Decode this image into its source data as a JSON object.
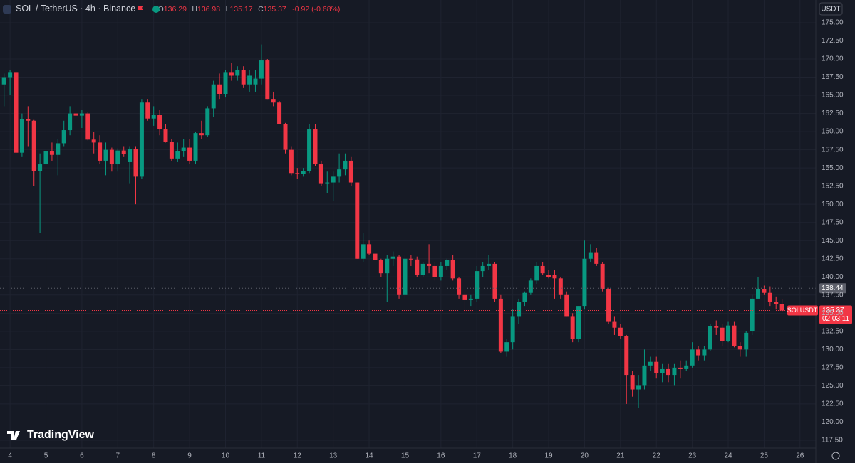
{
  "chart_data": {
    "type": "candlestick",
    "title": "SOL / TetherUS · 4h · Binance",
    "ohlc_labels": [
      "O",
      "H",
      "L",
      "C"
    ],
    "change": "-0.92 (-0.68%)",
    "currency": "USDT",
    "symbol_tag": "SOLUSDT",
    "countdown": "02:03:11",
    "brand": "TradingView",
    "price_line": 138.44,
    "up_color": "#089981",
    "down_color": "#f23645",
    "grid": true,
    "xlim": [
      3.72,
      26.44
    ],
    "ylim": [
      116.42,
      178.13
    ],
    "xticks": [
      4,
      5,
      6,
      7,
      8,
      9,
      10,
      11,
      12,
      13,
      14,
      15,
      16,
      17,
      18,
      19,
      20,
      21,
      22,
      23,
      24,
      25,
      26
    ],
    "yticks": [
      {
        "value": 117.5,
        "label": "117.50"
      },
      {
        "value": 120,
        "label": "120.00"
      },
      {
        "value": 122.5,
        "label": "122.50"
      },
      {
        "value": 125,
        "label": "125.00"
      },
      {
        "value": 127.5,
        "label": "127.50"
      },
      {
        "value": 130,
        "label": "130.00"
      },
      {
        "value": 132.5,
        "label": "132.50"
      },
      {
        "value": 135,
        "label": "135.00"
      },
      {
        "value": 137.5,
        "label": "137.50"
      },
      {
        "value": 140,
        "label": "140.00"
      },
      {
        "value": 142.5,
        "label": "142.50"
      },
      {
        "value": 145,
        "label": "145.00"
      },
      {
        "value": 147.5,
        "label": "147.50"
      },
      {
        "value": 150,
        "label": "150.00"
      },
      {
        "value": 152.5,
        "label": "152.50"
      },
      {
        "value": 155,
        "label": "155.00"
      },
      {
        "value": 157.5,
        "label": "157.50"
      },
      {
        "value": 160,
        "label": "160.00"
      },
      {
        "value": 162.5,
        "label": "162.50"
      },
      {
        "value": 165,
        "label": "165.00"
      },
      {
        "value": 167.5,
        "label": "167.50"
      },
      {
        "value": 170,
        "label": "170.00"
      },
      {
        "value": 172.5,
        "label": "172.50"
      },
      {
        "value": 175,
        "label": "175.00"
      }
    ],
    "x": [
      3.833,
      4,
      4.167,
      4.333,
      4.5,
      4.667,
      4.833,
      5,
      5.167,
      5.333,
      5.5,
      5.667,
      5.833,
      6,
      6.167,
      6.333,
      6.5,
      6.667,
      6.833,
      7,
      7.167,
      7.333,
      7.5,
      7.667,
      7.833,
      8,
      8.167,
      8.333,
      8.5,
      8.667,
      8.833,
      9,
      9.167,
      9.333,
      9.5,
      9.667,
      9.833,
      10,
      10.167,
      10.333,
      10.5,
      10.667,
      10.833,
      11,
      11.167,
      11.333,
      11.5,
      11.667,
      11.833,
      12,
      12.167,
      12.333,
      12.5,
      12.667,
      12.833,
      13,
      13.167,
      13.333,
      13.5,
      13.667,
      13.833,
      14,
      14.167,
      14.333,
      14.5,
      14.667,
      14.833,
      15,
      15.167,
      15.333,
      15.5,
      15.667,
      15.833,
      16,
      16.167,
      16.333,
      16.5,
      16.667,
      16.833,
      17,
      17.167,
      17.333,
      17.5,
      17.667,
      17.833,
      18,
      18.167,
      18.333,
      18.5,
      18.667,
      18.833,
      19,
      19.167,
      19.333,
      19.5,
      19.667,
      19.833,
      20,
      20.167,
      20.333,
      20.5,
      20.667,
      20.833,
      21,
      21.167,
      21.333,
      21.5,
      21.667,
      21.833,
      22,
      22.167,
      22.333,
      22.5,
      22.667,
      22.833,
      23,
      23.167,
      23.333,
      23.5,
      23.667,
      23.833,
      24,
      24.167,
      24.333,
      24.5,
      24.667,
      24.833,
      25,
      25.167,
      25.333,
      25.5
    ],
    "open": [
      166.5,
      167.5,
      168.2,
      157.1,
      161.7,
      161.5,
      154.6,
      155.5,
      157.3,
      156.8,
      158.4,
      160.2,
      162.5,
      162.2,
      162.5,
      158.9,
      158.5,
      156,
      157.5,
      155.5,
      157.4,
      155.8,
      157.6,
      153.8,
      164,
      161.8,
      162.3,
      160.3,
      158.6,
      156.3,
      157.3,
      157.8,
      156,
      159.8,
      159.5,
      163.2,
      166.5,
      165.2,
      168.2,
      167.7,
      168.5,
      166.5,
      166.5,
      167.3,
      169.8,
      164.5,
      164,
      161,
      157.5,
      154.3,
      154.2,
      154.6,
      160.3,
      155.5,
      152.8,
      153,
      153.8,
      154.8,
      156,
      153,
      142.5,
      144.5,
      143.2,
      142.3,
      140.5,
      142.5,
      142.8,
      137.5,
      142.5,
      142.4,
      140.3,
      141.8,
      141.5,
      140,
      141.5,
      142.3,
      139.8,
      137.5,
      136.8,
      137,
      140.8,
      141.5,
      141.8,
      137,
      129.7,
      131,
      134.5,
      136.5,
      137.8,
      139.5,
      141.5,
      140.3,
      140.3,
      139.8,
      137.5,
      134.5,
      131.5,
      136,
      142.5,
      143.3,
      141.8,
      138.3,
      133.8,
      133,
      131.8,
      126.5,
      124.5,
      125,
      127.8,
      128.3,
      126.8,
      127.3,
      126.5,
      127.5,
      127.3,
      127.8,
      130,
      129.2,
      130,
      133.2,
      133,
      131.2,
      133.3,
      130.5,
      130,
      132.5,
      137,
      138.3,
      137.8,
      136.5,
      136.29
    ],
    "high": [
      168,
      168.5,
      168.3,
      162.5,
      163.5,
      161.6,
      157,
      158,
      158.5,
      159,
      161.5,
      163.5,
      163.5,
      163,
      162.7,
      160,
      159.5,
      158.5,
      157.8,
      157.7,
      158,
      158,
      158,
      164.5,
      164.5,
      163.5,
      163,
      161,
      159,
      158.5,
      159,
      159,
      160,
      161.5,
      163.5,
      167,
      168,
      168.5,
      169.5,
      169,
      169,
      168.5,
      168.5,
      172,
      170,
      165.5,
      164.2,
      161.2,
      158,
      155,
      155,
      161,
      161,
      156,
      154.5,
      154.5,
      157,
      157,
      156.5,
      153,
      146,
      145,
      144,
      142.5,
      143,
      143.5,
      143,
      143,
      143,
      142.8,
      142,
      144.5,
      142,
      142,
      142.5,
      143,
      140,
      138,
      137.5,
      141.5,
      142,
      143,
      142,
      137.5,
      131.5,
      135.5,
      137,
      138,
      139.8,
      142,
      142,
      141,
      141,
      140,
      138,
      135,
      136,
      145,
      144.5,
      144,
      142,
      138.5,
      134.5,
      133.5,
      132,
      127,
      126.5,
      130,
      129,
      129,
      128,
      128,
      128,
      128.5,
      128.5,
      131,
      130.5,
      130.5,
      133.5,
      134,
      133.5,
      133.8,
      133.8,
      131,
      132.5,
      137.5,
      140,
      138.8,
      138.7,
      137.3,
      136.98
    ],
    "low": [
      163.5,
      165,
      157,
      156.5,
      158,
      152.5,
      146,
      149.5,
      156,
      154,
      158,
      159.5,
      161.3,
      160.5,
      158.8,
      157,
      155.5,
      154,
      154.5,
      154.5,
      156.5,
      152.8,
      150,
      153.5,
      161.5,
      160.8,
      159.5,
      158.5,
      156,
      155.8,
      156.5,
      155.5,
      155.5,
      159,
      159.3,
      162,
      164.5,
      164.7,
      167,
      167,
      166,
      165.5,
      165.5,
      166.5,
      164.5,
      163.5,
      161,
      157,
      154,
      153.5,
      153.8,
      154.3,
      155.3,
      152.5,
      151.5,
      150.5,
      153,
      154,
      152.5,
      142.5,
      142,
      143,
      139,
      140,
      136.5,
      141.5,
      137,
      137,
      141.5,
      140,
      140,
      140.5,
      139.5,
      139.5,
      141,
      139.5,
      137,
      135,
      136,
      136.5,
      140,
      141,
      136.5,
      129.5,
      129,
      130,
      133.5,
      136,
      137.5,
      139,
      140.3,
      139.8,
      137,
      137,
      134.5,
      131,
      131,
      135.5,
      142,
      141.5,
      138,
      133.5,
      132,
      131.5,
      122.5,
      123.5,
      122,
      124.5,
      127,
      126,
      125.5,
      125.5,
      125,
      126,
      127,
      127.5,
      128.5,
      128.5,
      129.8,
      132,
      130.5,
      131,
      130.3,
      129,
      129,
      132,
      137,
      137.5,
      136,
      135.5,
      135.17
    ],
    "close": [
      167.5,
      168.2,
      157.1,
      161.7,
      161.5,
      154.6,
      155.5,
      157.3,
      156.8,
      158.4,
      160.2,
      162.5,
      162.2,
      162.5,
      158.9,
      158.5,
      156,
      157.5,
      155.5,
      157.4,
      156.9,
      157.6,
      153.8,
      164,
      161.8,
      162.3,
      160.3,
      158.6,
      156.3,
      157.3,
      157.8,
      156,
      159.8,
      159.5,
      163.2,
      166.5,
      165.2,
      168.2,
      167.7,
      168.5,
      166.5,
      167.7,
      167.3,
      169.8,
      164.5,
      164,
      161,
      157.5,
      154.3,
      154.2,
      154.6,
      160.3,
      155.5,
      152.8,
      153,
      153.8,
      154.8,
      156,
      153,
      142.5,
      144.5,
      143.2,
      142.3,
      140.5,
      142.5,
      142.8,
      137.5,
      142.5,
      142.4,
      140.3,
      141.8,
      141.5,
      140,
      141.5,
      142.3,
      139.8,
      137.5,
      136.8,
      137,
      140.8,
      141.5,
      141.8,
      137,
      129.7,
      131,
      134.5,
      136.5,
      137.8,
      139.5,
      141.5,
      140.5,
      140,
      139.8,
      137.5,
      134.5,
      131.5,
      136,
      142.5,
      143.3,
      141.8,
      138.3,
      133.8,
      133,
      131.8,
      126.5,
      124.5,
      125,
      127.8,
      128.3,
      126.8,
      127.3,
      126.5,
      127.5,
      127.3,
      127.8,
      130,
      129.2,
      130,
      133.2,
      133,
      131.2,
      133.3,
      130.5,
      130,
      132.3,
      137,
      138.3,
      137.8,
      136.5,
      136.29,
      135.37
    ]
  }
}
